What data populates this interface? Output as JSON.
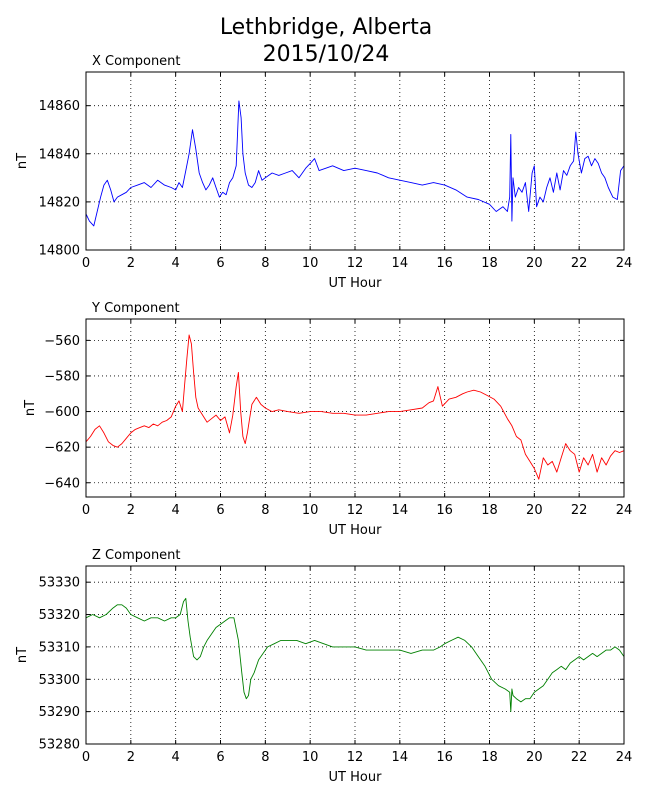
{
  "figure": {
    "title_line1": "Lethbridge, Alberta",
    "title_line2": "2015/10/24"
  },
  "chart_data": [
    {
      "type": "line",
      "title": "X Component",
      "xlabel": "UT Hour",
      "ylabel": "nT",
      "xlim": [
        0,
        24
      ],
      "ylim": [
        14800,
        14874
      ],
      "xticks": [
        0,
        2,
        4,
        6,
        8,
        10,
        12,
        14,
        16,
        18,
        20,
        22,
        24
      ],
      "yticks": [
        14800,
        14820,
        14840,
        14860
      ],
      "grid": true,
      "color": "#0000ff",
      "series": [
        {
          "x": [
            0,
            0.15,
            0.35,
            0.5,
            0.65,
            0.8,
            0.95,
            1.1,
            1.25,
            1.4,
            1.6,
            1.8,
            2.0,
            2.3,
            2.6,
            2.9,
            3.2,
            3.5,
            3.8,
            4.0,
            4.15,
            4.3,
            4.45,
            4.6,
            4.75,
            4.9,
            5.05,
            5.2,
            5.35,
            5.5,
            5.65,
            5.8,
            5.95,
            6.1,
            6.25,
            6.4,
            6.55,
            6.7,
            6.82,
            6.92,
            7.0,
            7.1,
            7.25,
            7.4,
            7.55,
            7.7,
            7.85,
            8.0,
            8.3,
            8.6,
            8.9,
            9.2,
            9.5,
            9.8,
            10.0,
            10.2,
            10.4,
            10.7,
            11.0,
            11.5,
            12.0,
            12.5,
            13.0,
            13.5,
            14.0,
            14.5,
            15.0,
            15.5,
            16.0,
            16.5,
            17.0,
            17.5,
            18.0,
            18.3,
            18.6,
            18.8,
            18.9,
            18.95,
            19.0,
            19.05,
            19.15,
            19.3,
            19.45,
            19.6,
            19.75,
            19.9,
            20.0,
            20.1,
            20.25,
            20.4,
            20.55,
            20.7,
            20.85,
            21.0,
            21.15,
            21.3,
            21.45,
            21.6,
            21.75,
            21.85,
            21.95,
            22.1,
            22.25,
            22.4,
            22.55,
            22.7,
            22.85,
            23.0,
            23.15,
            23.3,
            23.5,
            23.7,
            23.85,
            24.0
          ],
          "y": [
            14815,
            14812,
            14810,
            14816,
            14822,
            14827,
            14829,
            14825,
            14820,
            14822,
            14823,
            14824,
            14826,
            14827,
            14828,
            14826,
            14829,
            14827,
            14826,
            14825,
            14828,
            14826,
            14833,
            14840,
            14850,
            14842,
            14832,
            14828,
            14825,
            14827,
            14830,
            14826,
            14822,
            14824,
            14823,
            14828,
            14830,
            14835,
            14862,
            14855,
            14840,
            14832,
            14827,
            14826,
            14828,
            14833,
            14829,
            14830,
            14832,
            14831,
            14832,
            14833,
            14830,
            14834,
            14836,
            14838,
            14833,
            14834,
            14835,
            14833,
            14834,
            14833,
            14832,
            14830,
            14829,
            14828,
            14827,
            14828,
            14827,
            14825,
            14822,
            14821,
            14819,
            14816,
            14818,
            14816,
            14822,
            14848,
            14812,
            14830,
            14822,
            14826,
            14824,
            14828,
            14816,
            14832,
            14835,
            14818,
            14822,
            14820,
            14826,
            14830,
            14824,
            14832,
            14825,
            14833,
            14831,
            14835,
            14837,
            14849,
            14840,
            14832,
            14838,
            14839,
            14835,
            14838,
            14836,
            14832,
            14830,
            14826,
            14822,
            14821,
            14833,
            14835
          ]
        }
      ]
    },
    {
      "type": "line",
      "title": "Y Component",
      "xlabel": "UT Hour",
      "ylabel": "nT",
      "xlim": [
        0,
        24
      ],
      "ylim": [
        -648,
        -548
      ],
      "xticks": [
        0,
        2,
        4,
        6,
        8,
        10,
        12,
        14,
        16,
        18,
        20,
        22,
        24
      ],
      "yticks": [
        -640,
        -620,
        -600,
        -580,
        -560
      ],
      "grid": true,
      "color": "#ff0000",
      "series": [
        {
          "x": [
            0,
            0.2,
            0.4,
            0.6,
            0.8,
            1.0,
            1.2,
            1.4,
            1.6,
            1.8,
            2.0,
            2.2,
            2.4,
            2.6,
            2.8,
            3.0,
            3.2,
            3.4,
            3.6,
            3.8,
            4.0,
            4.15,
            4.3,
            4.4,
            4.5,
            4.6,
            4.7,
            4.8,
            4.9,
            5.0,
            5.2,
            5.4,
            5.6,
            5.8,
            6.0,
            6.2,
            6.4,
            6.55,
            6.7,
            6.8,
            6.9,
            7.0,
            7.1,
            7.2,
            7.3,
            7.4,
            7.6,
            7.8,
            8.0,
            8.3,
            8.6,
            9.0,
            9.5,
            10.0,
            10.5,
            11.0,
            11.5,
            12.0,
            12.5,
            13.0,
            13.5,
            14.0,
            14.5,
            15.0,
            15.3,
            15.5,
            15.7,
            15.9,
            16.2,
            16.5,
            16.8,
            17.0,
            17.3,
            17.6,
            17.9,
            18.2,
            18.5,
            18.8,
            19.0,
            19.2,
            19.4,
            19.6,
            19.8,
            20.0,
            20.2,
            20.4,
            20.6,
            20.8,
            21.0,
            21.2,
            21.4,
            21.6,
            21.8,
            22.0,
            22.2,
            22.4,
            22.6,
            22.8,
            23.0,
            23.2,
            23.4,
            23.6,
            23.8,
            24.0
          ],
          "y": [
            -617,
            -614,
            -610,
            -608,
            -612,
            -617,
            -619,
            -620,
            -618,
            -615,
            -612,
            -610,
            -609,
            -608,
            -609,
            -607,
            -608,
            -606,
            -605,
            -603,
            -597,
            -594,
            -600,
            -585,
            -570,
            -557,
            -562,
            -578,
            -592,
            -598,
            -602,
            -606,
            -604,
            -602,
            -605,
            -603,
            -612,
            -602,
            -586,
            -578,
            -600,
            -614,
            -618,
            -612,
            -604,
            -596,
            -592,
            -596,
            -598,
            -600,
            -599,
            -600,
            -601,
            -600,
            -600,
            -601,
            -601,
            -602,
            -602,
            -601,
            -600,
            -600,
            -599,
            -598,
            -595,
            -594,
            -586,
            -597,
            -593,
            -592,
            -590,
            -589,
            -588,
            -589,
            -591,
            -593,
            -597,
            -604,
            -608,
            -614,
            -616,
            -624,
            -628,
            -632,
            -638,
            -626,
            -630,
            -628,
            -634,
            -626,
            -618,
            -622,
            -624,
            -634,
            -626,
            -630,
            -624,
            -634,
            -626,
            -630,
            -625,
            -622,
            -623,
            -622
          ]
        }
      ]
    },
    {
      "type": "line",
      "title": "Z Component",
      "xlabel": "UT Hour",
      "ylabel": "nT",
      "xlim": [
        0,
        24
      ],
      "ylim": [
        53280,
        53335
      ],
      "xticks": [
        0,
        2,
        4,
        6,
        8,
        10,
        12,
        14,
        16,
        18,
        20,
        22,
        24
      ],
      "yticks": [
        53280,
        53290,
        53300,
        53310,
        53320,
        53330
      ],
      "grid": true,
      "color": "#008000",
      "series": [
        {
          "x": [
            0,
            0.3,
            0.6,
            0.9,
            1.2,
            1.4,
            1.6,
            1.8,
            2.0,
            2.3,
            2.6,
            2.9,
            3.2,
            3.5,
            3.8,
            4.0,
            4.2,
            4.35,
            4.45,
            4.55,
            4.65,
            4.8,
            4.95,
            5.1,
            5.25,
            5.4,
            5.6,
            5.8,
            6.0,
            6.2,
            6.4,
            6.6,
            6.8,
            6.95,
            7.05,
            7.15,
            7.25,
            7.35,
            7.5,
            7.7,
            7.9,
            8.1,
            8.4,
            8.7,
            9.0,
            9.4,
            9.8,
            10.2,
            10.6,
            11.0,
            11.5,
            12.0,
            12.5,
            13.0,
            13.5,
            14.0,
            14.5,
            15.0,
            15.5,
            15.8,
            16.0,
            16.3,
            16.6,
            16.9,
            17.2,
            17.5,
            17.8,
            18.1,
            18.4,
            18.7,
            18.9,
            18.95,
            19.0,
            19.05,
            19.2,
            19.4,
            19.6,
            19.8,
            20.0,
            20.2,
            20.4,
            20.6,
            20.8,
            21.0,
            21.2,
            21.4,
            21.6,
            21.8,
            22.0,
            22.2,
            22.4,
            22.6,
            22.8,
            23.0,
            23.2,
            23.4,
            23.6,
            23.8,
            24.0
          ],
          "y": [
            53319,
            53320,
            53319,
            53320,
            53322,
            53323,
            53323,
            53322,
            53320,
            53319,
            53318,
            53319,
            53319,
            53318,
            53319,
            53319,
            53320,
            53324,
            53325,
            53318,
            53313,
            53307,
            53306,
            53307,
            53310,
            53312,
            53314,
            53316,
            53317,
            53318,
            53319,
            53319,
            53312,
            53302,
            53296,
            53294,
            53295,
            53300,
            53302,
            53306,
            53308,
            53310,
            53311,
            53312,
            53312,
            53312,
            53311,
            53312,
            53311,
            53310,
            53310,
            53310,
            53309,
            53309,
            53309,
            53309,
            53308,
            53309,
            53309,
            53310,
            53311,
            53312,
            53313,
            53312,
            53310,
            53307,
            53304,
            53300,
            53298,
            53297,
            53296,
            53290,
            53297,
            53295,
            53294,
            53293,
            53294,
            53294,
            53296,
            53297,
            53298,
            53300,
            53302,
            53303,
            53304,
            53303,
            53305,
            53306,
            53307,
            53306,
            53307,
            53308,
            53307,
            53308,
            53309,
            53309,
            53310,
            53309,
            53307
          ]
        }
      ]
    }
  ]
}
